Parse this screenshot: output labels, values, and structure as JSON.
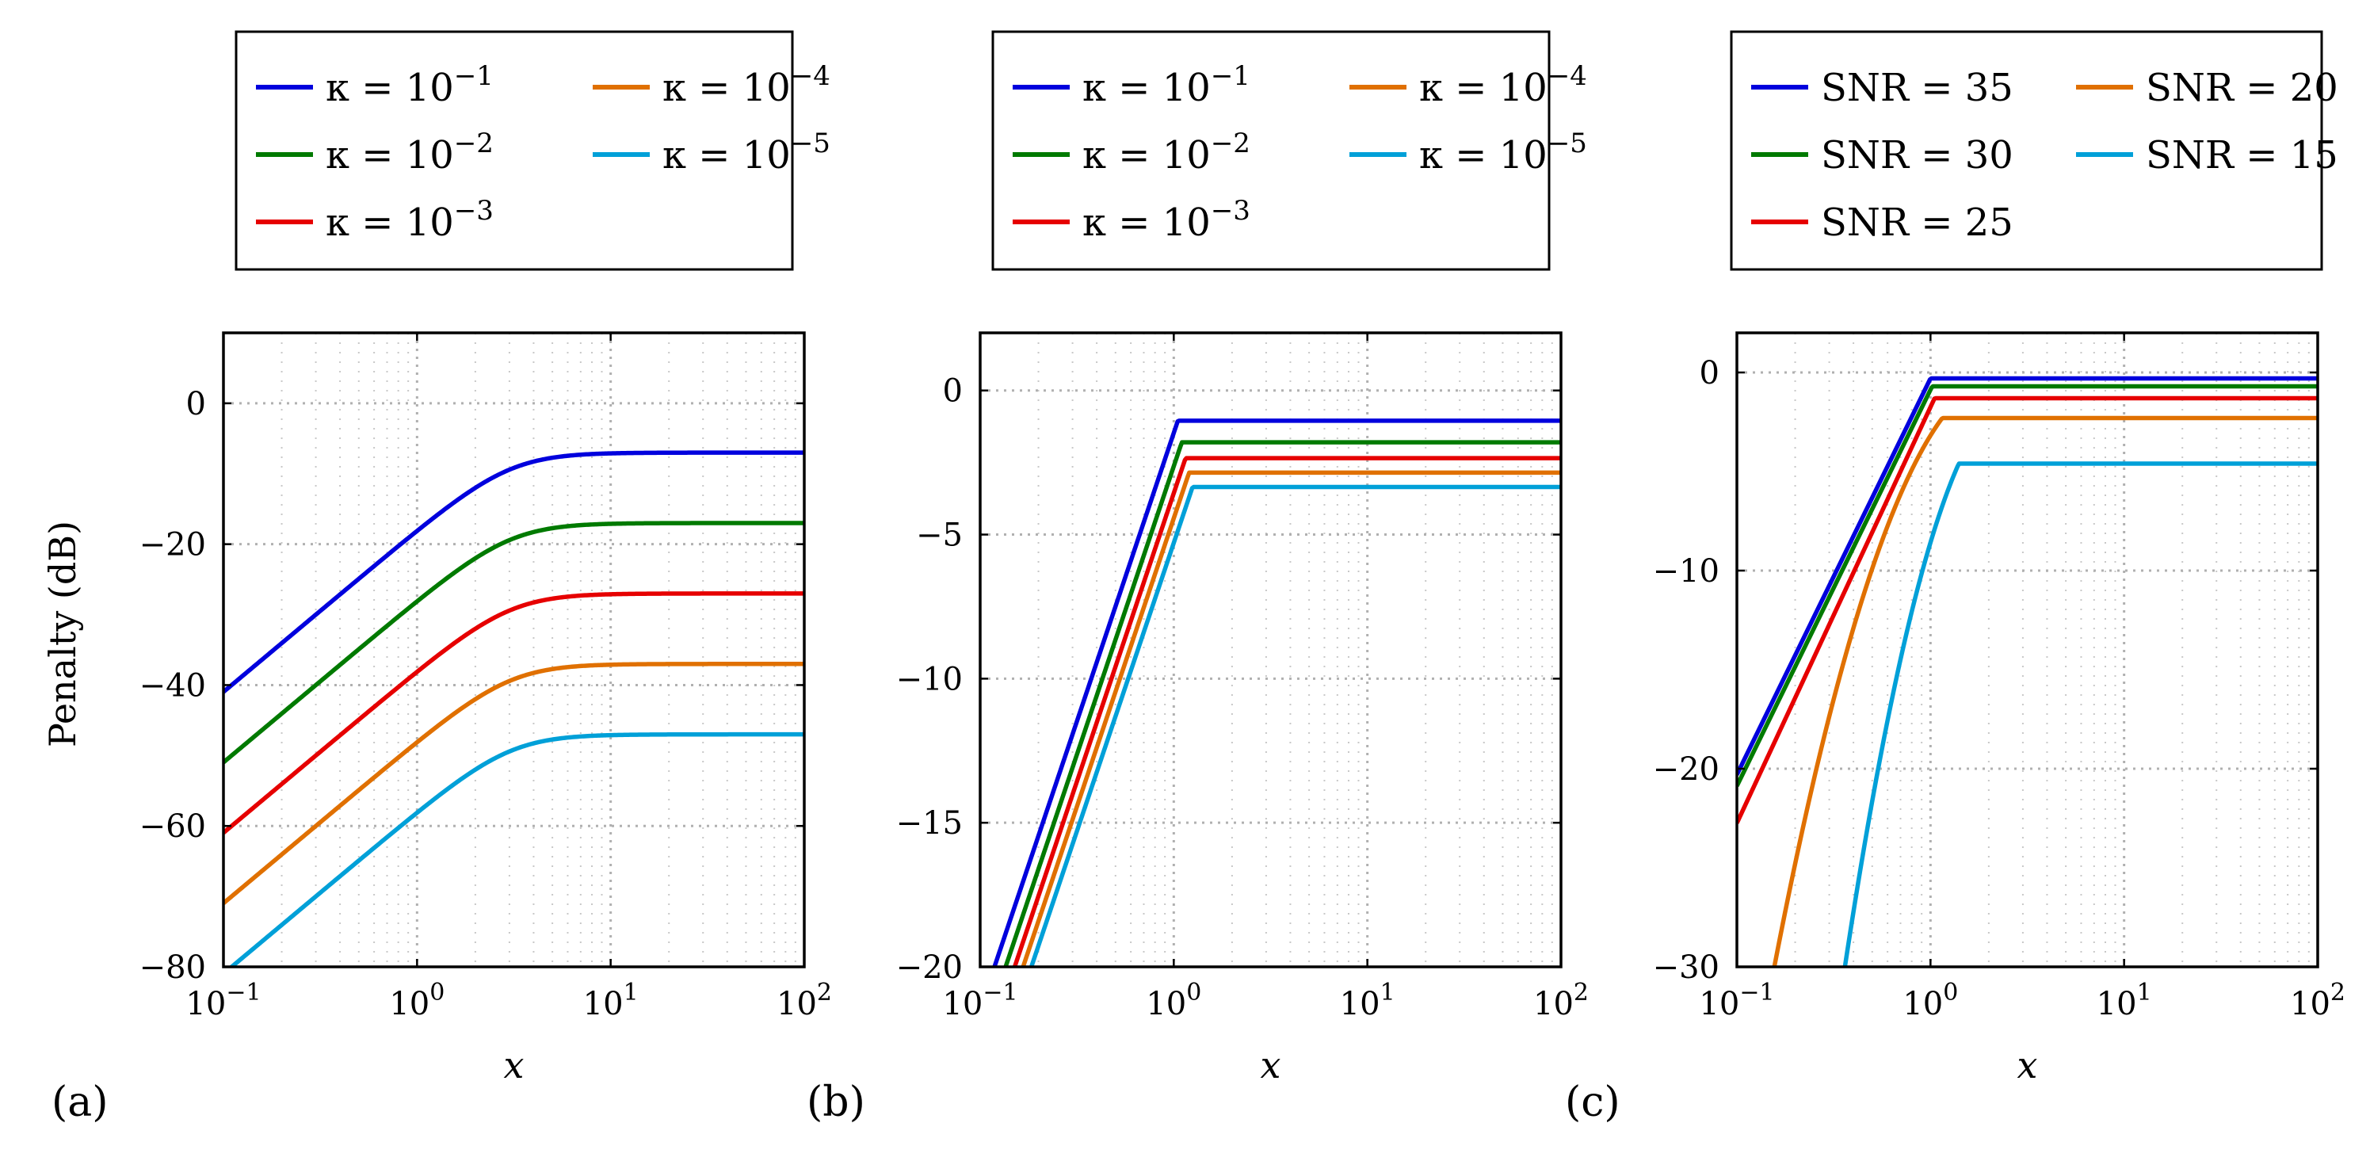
{
  "figure": {
    "ylabel": "Penalty (dB)",
    "panel_labels": [
      "(a)",
      "(b)",
      "(c)"
    ],
    "colors": {
      "blue": "#0000dd",
      "green": "#007a00",
      "red": "#e60000",
      "orange": "#e07000",
      "cyan": "#00a0d8"
    }
  },
  "chart_data": [
    {
      "type": "line",
      "panel": "(a)",
      "xlabel": "x",
      "ylabel": "Penalty (dB)",
      "xscale": "log",
      "xlim": [
        0.1,
        100
      ],
      "ylim": [
        -80,
        10
      ],
      "xticks": [
        0.1,
        1,
        10,
        100
      ],
      "xtick_labels": [
        [
          "10",
          "−1"
        ],
        [
          "10",
          "0"
        ],
        [
          "10",
          "1"
        ],
        [
          "10",
          "2"
        ]
      ],
      "yticks": [
        0,
        -20,
        -40,
        -60,
        -80
      ],
      "ytick_labels": [
        "0",
        "−20",
        "−40",
        "−60",
        "−80"
      ],
      "grid": true,
      "legend_position": "above",
      "series": [
        {
          "name": "κ = 10⁻¹",
          "legend": [
            "κ = 10",
            "−1"
          ],
          "color": "#0000dd",
          "knee": 3.0,
          "plateau": -7,
          "slope": 23.0,
          "model": "smooth"
        },
        {
          "name": "κ = 10⁻²",
          "legend": [
            "κ = 10",
            "−2"
          ],
          "color": "#007a00",
          "knee": 3.0,
          "plateau": -17,
          "slope": 23.0,
          "model": "smooth"
        },
        {
          "name": "κ = 10⁻³",
          "legend": [
            "κ = 10",
            "−3"
          ],
          "color": "#e60000",
          "knee": 3.0,
          "plateau": -27,
          "slope": 23.0,
          "model": "smooth"
        },
        {
          "name": "κ = 10⁻⁴",
          "legend": [
            "κ = 10",
            "−4"
          ],
          "color": "#e07000",
          "knee": 3.0,
          "plateau": -37,
          "slope": 23.0,
          "model": "smooth"
        },
        {
          "name": "κ = 10⁻⁵",
          "legend": [
            "κ = 10",
            "−5"
          ],
          "color": "#00a0d8",
          "knee": 3.0,
          "plateau": -47,
          "slope": 23.0,
          "model": "smooth"
        }
      ]
    },
    {
      "type": "line",
      "panel": "(b)",
      "xlabel": "x",
      "xscale": "log",
      "xlim": [
        0.1,
        100
      ],
      "ylim": [
        -20,
        2
      ],
      "xticks": [
        0.1,
        1,
        10,
        100
      ],
      "xtick_labels": [
        [
          "10",
          "−1"
        ],
        [
          "10",
          "0"
        ],
        [
          "10",
          "1"
        ],
        [
          "10",
          "2"
        ]
      ],
      "yticks": [
        0,
        -5,
        -10,
        -15,
        -20
      ],
      "ytick_labels": [
        "0",
        "−5",
        "−10",
        "−15",
        "−20"
      ],
      "grid": true,
      "legend_position": "above",
      "series": [
        {
          "name": "κ = 10⁻¹",
          "legend": [
            "κ = 10",
            "−1"
          ],
          "color": "#0000dd",
          "knee": 1.05,
          "plateau": -1.05,
          "slope": 20.0,
          "model": "sharp"
        },
        {
          "name": "κ = 10⁻²",
          "legend": [
            "κ = 10",
            "−2"
          ],
          "color": "#007a00",
          "knee": 1.1,
          "plateau": -1.8,
          "slope": 20.0,
          "model": "sharp"
        },
        {
          "name": "κ = 10⁻³",
          "legend": [
            "κ = 10",
            "−3"
          ],
          "color": "#e60000",
          "knee": 1.15,
          "plateau": -2.35,
          "slope": 20.0,
          "model": "sharp"
        },
        {
          "name": "κ = 10⁻⁴",
          "legend": [
            "κ = 10",
            "−4"
          ],
          "color": "#e07000",
          "knee": 1.2,
          "plateau": -2.85,
          "slope": 20.0,
          "model": "sharp"
        },
        {
          "name": "κ = 10⁻⁵",
          "legend": [
            "κ = 10",
            "−5"
          ],
          "color": "#00a0d8",
          "knee": 1.25,
          "plateau": -3.35,
          "slope": 20.0,
          "model": "sharp"
        }
      ]
    },
    {
      "type": "line",
      "panel": "(c)",
      "xlabel": "x",
      "xscale": "log",
      "xlim": [
        0.1,
        100
      ],
      "ylim": [
        -30,
        2
      ],
      "xticks": [
        0.1,
        1,
        10,
        100
      ],
      "xtick_labels": [
        [
          "10",
          "−1"
        ],
        [
          "10",
          "0"
        ],
        [
          "10",
          "1"
        ],
        [
          "10",
          "2"
        ]
      ],
      "yticks": [
        0,
        -10,
        -20,
        -30
      ],
      "ytick_labels": [
        "0",
        "−10",
        "−20",
        "−30"
      ],
      "grid": true,
      "legend_position": "above",
      "series": [
        {
          "name": "SNR = 35",
          "legend": [
            "SNR = 35",
            ""
          ],
          "color": "#0000dd",
          "knee": 1.0,
          "plateau": -0.3,
          "slope": 20.0,
          "model": "sharp"
        },
        {
          "name": "SNR = 30",
          "legend": [
            "SNR = 30",
            ""
          ],
          "color": "#007a00",
          "knee": 1.02,
          "plateau": -0.7,
          "slope": 20.0,
          "model": "sharp"
        },
        {
          "name": "SNR = 25",
          "legend": [
            "SNR = 25",
            ""
          ],
          "color": "#e60000",
          "knee": 1.05,
          "plateau": -1.3,
          "slope": 21.0,
          "model": "sharp"
        },
        {
          "name": "SNR = 20",
          "legend": [
            "SNR = 20",
            ""
          ],
          "color": "#e07000",
          "knee": 1.15,
          "plateau": -2.3,
          "slope": 24.0,
          "model": "curved"
        },
        {
          "name": "SNR = 15",
          "legend": [
            "SNR = 15",
            ""
          ],
          "color": "#00a0d8",
          "knee": 1.4,
          "plateau": -4.6,
          "slope": 40.0,
          "model": "curved"
        }
      ]
    }
  ]
}
